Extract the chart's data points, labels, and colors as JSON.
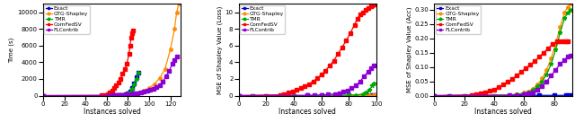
{
  "methods": [
    "Exact",
    "GTG-Shapley",
    "TMR",
    "ComFedSV",
    "FLContrib"
  ],
  "colors": [
    "#0000cc",
    "#ff8c00",
    "#00aa00",
    "#ff0000",
    "#8b00d4"
  ],
  "markers": [
    "s",
    "o",
    "*",
    "s",
    "s"
  ],
  "markersizes": [
    2.5,
    2.5,
    3.5,
    2.5,
    2.5
  ],
  "linewidth": 0.9,
  "plot1": {
    "ylabel": "Time (s)",
    "xlabel": "Instances solved",
    "xlim": [
      0,
      130
    ],
    "ylim": [
      0,
      11000
    ],
    "yticks": [
      0,
      2000,
      4000,
      6000,
      8000,
      10000
    ],
    "xticks": [
      0,
      20,
      40,
      60,
      80,
      100,
      120
    ],
    "curves": {
      "Exact": {
        "x": [
          0,
          62,
          64,
          66,
          68,
          70,
          72,
          74,
          76,
          78,
          80,
          82,
          84,
          86,
          88,
          90
        ],
        "y": [
          0,
          5,
          8,
          12,
          18,
          28,
          42,
          65,
          100,
          160,
          280,
          500,
          900,
          1500,
          2200,
          2800
        ]
      },
      "GTG-Shapley": {
        "x": [
          0,
          62,
          65,
          68,
          71,
          74,
          77,
          80,
          85,
          90,
          95,
          100,
          105,
          110,
          115,
          120,
          124,
          126,
          128
        ],
        "y": [
          0,
          4,
          7,
          12,
          20,
          32,
          55,
          100,
          200,
          350,
          550,
          900,
          1400,
          2100,
          3200,
          5500,
          8000,
          10000,
          11000
        ]
      },
      "TMR": {
        "x": [
          0,
          62,
          64,
          66,
          68,
          70,
          72,
          74,
          76,
          78,
          80,
          82,
          84,
          86,
          88,
          90
        ],
        "y": [
          0,
          4,
          6,
          10,
          15,
          23,
          35,
          55,
          85,
          140,
          240,
          430,
          800,
          1400,
          2000,
          2700
        ]
      },
      "ComFedSV": {
        "x": [
          0,
          55,
          58,
          61,
          63,
          65,
          67,
          69,
          71,
          73,
          75,
          77,
          79,
          81,
          82,
          83,
          84,
          85
        ],
        "y": [
          0,
          30,
          80,
          180,
          350,
          600,
          900,
          1200,
          1600,
          2000,
          2600,
          3200,
          3800,
          5000,
          6000,
          7000,
          7500,
          7800
        ]
      },
      "FLContrib": {
        "x": [
          0,
          62,
          65,
          68,
          71,
          74,
          77,
          80,
          83,
          86,
          89,
          92,
          95,
          98,
          101,
          104,
          107,
          110,
          113,
          116,
          119,
          122,
          124,
          126
        ],
        "y": [
          0,
          8,
          15,
          25,
          40,
          60,
          90,
          130,
          180,
          240,
          310,
          390,
          480,
          580,
          680,
          800,
          1000,
          1300,
          1700,
          2300,
          3000,
          3800,
          4300,
          4700
        ]
      }
    }
  },
  "plot2": {
    "ylabel": "MSE of Shapley Value (Loss)",
    "xlabel": "Instances solved",
    "xlim": [
      0,
      100
    ],
    "ylim": [
      0,
      11
    ],
    "yticks": [
      0,
      2,
      4,
      6,
      8,
      10
    ],
    "xticks": [
      0,
      20,
      40,
      60,
      80,
      100
    ],
    "curves": {
      "Exact": {
        "x": [
          0,
          10,
          20,
          30,
          40,
          50,
          60,
          70,
          80,
          90,
          95,
          98,
          99
        ],
        "y": [
          0,
          0.005,
          0.005,
          0.005,
          0.005,
          0.01,
          0.01,
          0.01,
          0.02,
          0.02,
          0.03,
          0.05,
          0.07
        ]
      },
      "GTG-Shapley": {
        "x": [
          0,
          10,
          20,
          30,
          40,
          50,
          60,
          70,
          80,
          90,
          95,
          98,
          99
        ],
        "y": [
          0,
          0.003,
          0.003,
          0.004,
          0.005,
          0.005,
          0.008,
          0.008,
          0.01,
          0.02,
          0.025,
          0.04,
          0.06
        ]
      },
      "TMR": {
        "x": [
          0,
          10,
          20,
          30,
          40,
          50,
          60,
          70,
          80,
          85,
          90,
          92,
          95,
          97,
          98
        ],
        "y": [
          0,
          0.005,
          0.005,
          0.01,
          0.01,
          0.015,
          0.02,
          0.03,
          0.05,
          0.09,
          0.18,
          0.35,
          0.7,
          1.2,
          1.5
        ]
      },
      "ComFedSV": {
        "x": [
          0,
          30,
          33,
          36,
          39,
          42,
          45,
          48,
          51,
          54,
          57,
          60,
          63,
          66,
          69,
          72,
          75,
          78,
          81,
          84,
          86,
          88,
          90,
          92,
          94,
          96,
          97,
          98
        ],
        "y": [
          0,
          0.1,
          0.2,
          0.35,
          0.5,
          0.7,
          0.9,
          1.1,
          1.4,
          1.7,
          2.1,
          2.5,
          3.0,
          3.6,
          4.2,
          5.0,
          5.8,
          6.6,
          7.5,
          8.5,
          9.2,
          9.7,
          10.0,
          10.3,
          10.5,
          10.7,
          10.8,
          10.9
        ]
      },
      "FLContrib": {
        "x": [
          0,
          50,
          55,
          60,
          65,
          70,
          73,
          76,
          79,
          82,
          85,
          88,
          91,
          94,
          96,
          98
        ],
        "y": [
          0,
          0.02,
          0.04,
          0.07,
          0.12,
          0.2,
          0.3,
          0.45,
          0.65,
          0.9,
          1.2,
          1.7,
          2.3,
          2.9,
          3.3,
          3.6
        ]
      }
    }
  },
  "plot3": {
    "ylabel": "MSE of Shapley Value (Acc)",
    "xlabel": "Instances solved",
    "xlim": [
      0,
      92
    ],
    "ylim": [
      0,
      0.32
    ],
    "yticks": [
      0.0,
      0.05,
      0.1,
      0.15,
      0.2,
      0.25,
      0.3
    ],
    "xticks": [
      0,
      20,
      40,
      60,
      80
    ],
    "curves": {
      "Exact": {
        "x": [
          0,
          10,
          20,
          30,
          40,
          50,
          60,
          70,
          80,
          88,
          90,
          92
        ],
        "y": [
          0,
          0,
          0,
          0,
          0,
          0,
          0.001,
          0.001,
          0.001,
          0.001,
          0.001,
          0.002
        ]
      },
      "GTG-Shapley": {
        "x": [
          0,
          50,
          55,
          60,
          63,
          66,
          69,
          72,
          75,
          78,
          81,
          84,
          87,
          89,
          91
        ],
        "y": [
          0,
          0.003,
          0.005,
          0.01,
          0.015,
          0.025,
          0.04,
          0.06,
          0.09,
          0.13,
          0.18,
          0.24,
          0.29,
          0.31,
          0.32
        ]
      },
      "TMR": {
        "x": [
          0,
          50,
          55,
          60,
          63,
          66,
          69,
          72,
          75,
          78,
          81,
          84,
          87,
          89,
          91
        ],
        "y": [
          0,
          0.002,
          0.004,
          0.008,
          0.012,
          0.02,
          0.032,
          0.05,
          0.075,
          0.11,
          0.16,
          0.22,
          0.27,
          0.29,
          0.3
        ]
      },
      "ComFedSV": {
        "x": [
          0,
          25,
          28,
          31,
          34,
          37,
          40,
          43,
          46,
          49,
          52,
          55,
          58,
          61,
          64,
          67,
          70,
          73,
          76,
          79,
          82,
          84,
          86,
          88,
          89
        ],
        "y": [
          0,
          0.002,
          0.004,
          0.007,
          0.011,
          0.016,
          0.022,
          0.03,
          0.038,
          0.048,
          0.058,
          0.07,
          0.082,
          0.096,
          0.108,
          0.12,
          0.135,
          0.15,
          0.165,
          0.18,
          0.19,
          0.19,
          0.19,
          0.19,
          0.19
        ]
      },
      "FLContrib": {
        "x": [
          0,
          50,
          55,
          60,
          63,
          66,
          69,
          72,
          75,
          78,
          81,
          84,
          87,
          89,
          91
        ],
        "y": [
          0,
          0.001,
          0.002,
          0.004,
          0.007,
          0.012,
          0.02,
          0.033,
          0.05,
          0.07,
          0.09,
          0.11,
          0.125,
          0.135,
          0.14
        ]
      }
    }
  }
}
